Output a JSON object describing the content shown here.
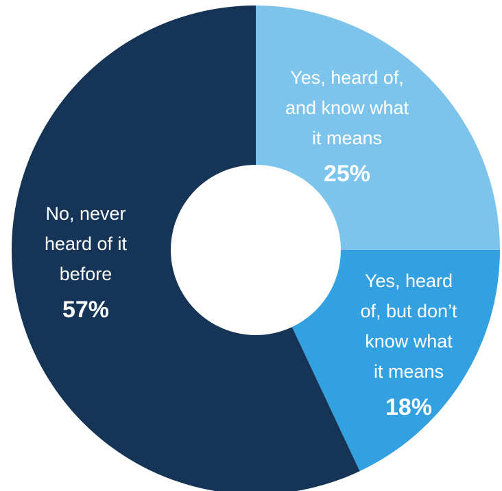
{
  "chart_data": {
    "type": "pie",
    "donut": true,
    "start_angle_deg": 0,
    "direction": "clockwise",
    "slices": [
      {
        "label_lines": [
          "Yes, heard of,",
          "and know what",
          "it means"
        ],
        "value": 25,
        "value_text": "25%",
        "color": "#7CC4EC"
      },
      {
        "label_lines": [
          "Yes, heard",
          "of, but don’t",
          "know what",
          "it means"
        ],
        "value": 18,
        "value_text": "18%",
        "color": "#33A1E0"
      },
      {
        "label_lines": [
          "No, never",
          "heard of it",
          "before"
        ],
        "value": 57,
        "value_text": "57%",
        "color": "#163456"
      }
    ],
    "background": "#ffffff",
    "label_color": "#ffffff"
  }
}
